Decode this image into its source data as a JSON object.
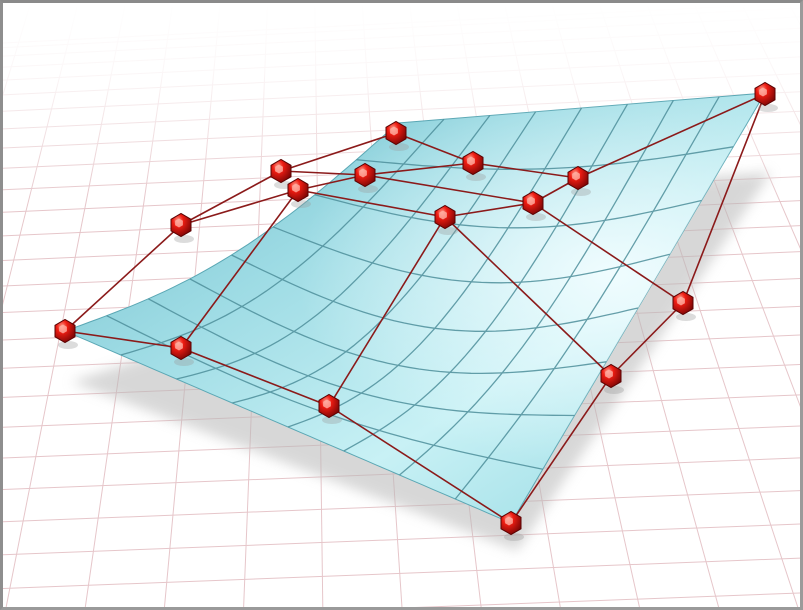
{
  "viewport": {
    "label": "",
    "background_color": "#ffffff",
    "frame_color": "#9a9a9a"
  },
  "scene": {
    "surface_type": "NURBS surface with control cage",
    "surface_color": "#8fd6e0",
    "surface_highlight_color": "#e9fbfd",
    "surface_isoparm_color": "#4f8f9c",
    "ground_grid_color": "#e7c9cc",
    "control_point_color": "#e01010",
    "control_hull_color": "#8b1a1a",
    "control_point_count": 16,
    "isoparm_grid": "8x8"
  }
}
